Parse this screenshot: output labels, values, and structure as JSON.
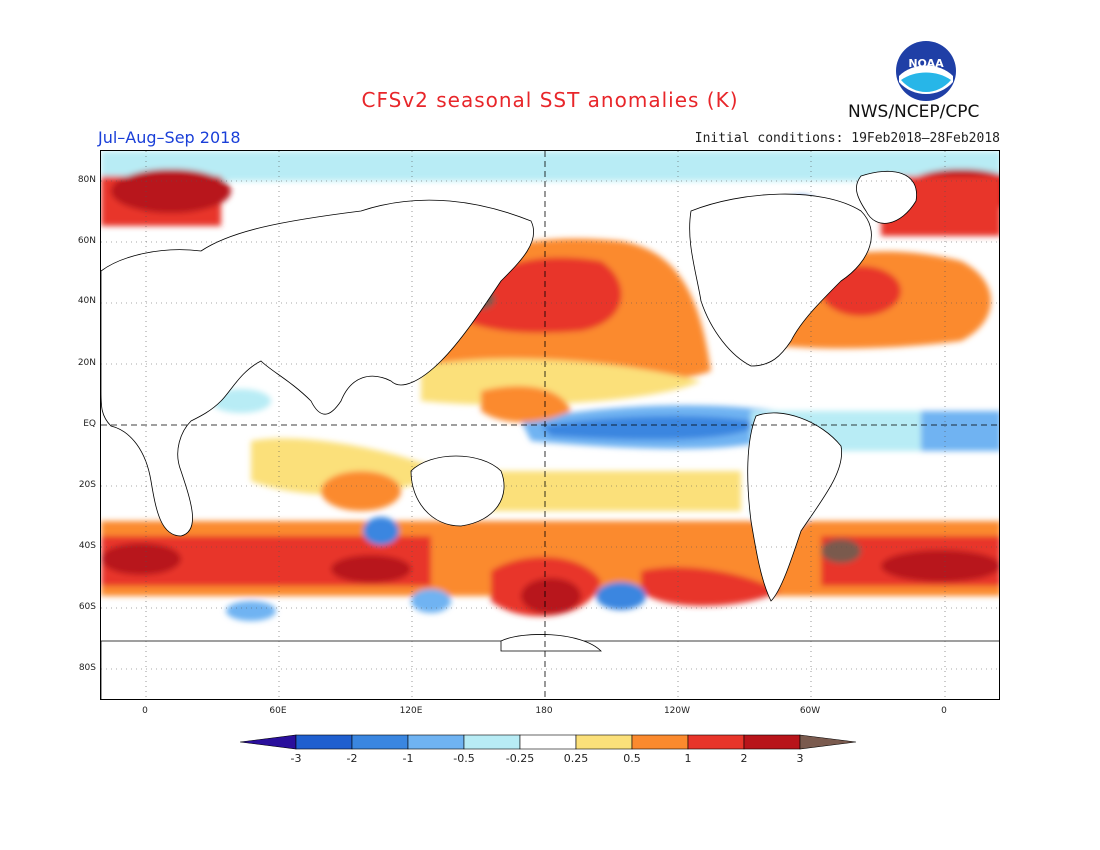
{
  "header": {
    "title": "CFSv2 seasonal SST anomalies (K)",
    "period": "Jul–Aug–Sep 2018",
    "initial_conditions": "Initial conditions: 19Feb2018–28Feb2018",
    "agency": "NWS/NCEP/CPC",
    "logo_text": "NOAA"
  },
  "axes": {
    "lat_labels": [
      "80N",
      "60N",
      "40N",
      "20N",
      "EQ",
      "20S",
      "40S",
      "60S",
      "80S"
    ],
    "lon_labels": [
      "0",
      "60E",
      "120E",
      "180",
      "120W",
      "60W",
      "0"
    ]
  },
  "colorbar": {
    "labels": [
      "-3",
      "-2",
      "-1",
      "-0.5",
      "-0.25",
      "0.25",
      "0.5",
      "1",
      "2",
      "3"
    ],
    "colors": [
      "#2a0f9c",
      "#1f5fcf",
      "#3a86e0",
      "#6fb3f2",
      "#b8ecf5",
      "#ffffff",
      "#fbe07a",
      "#fb8a2e",
      "#e8352a",
      "#b8141a",
      "#7a5a4e"
    ]
  },
  "map": {
    "land_color": "#ffffff",
    "coast_color": "#000000",
    "grid": "dotted"
  }
}
